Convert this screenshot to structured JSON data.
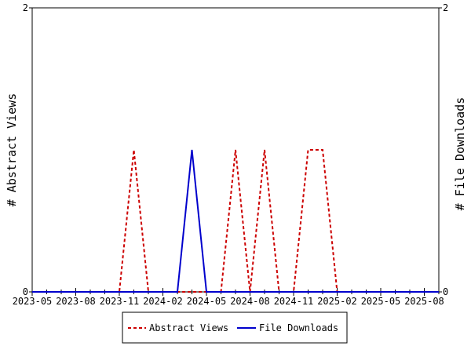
{
  "chart_data": {
    "type": "line",
    "x_ticks": [
      "2023-05",
      "2023-08",
      "2023-11",
      "2024-02",
      "2024-05",
      "2024-08",
      "2024-11",
      "2025-02",
      "2025-05",
      "2025-08"
    ],
    "x_range": [
      "2023-05",
      "2025-09"
    ],
    "ylabel_left": "# Abstract Views",
    "ylabel_right": "# File Downloads",
    "ylim_left": [
      0,
      2
    ],
    "ylim_right": [
      0,
      2
    ],
    "y_ticks_left": [
      "0",
      "2"
    ],
    "y_ticks_right": [
      "0",
      "2"
    ],
    "grid": false,
    "legend_position": "bottom",
    "series": [
      {
        "name": "Abstract Views",
        "axis": "left",
        "color": "#cc0000",
        "dash": "dashed",
        "x": [
          "2023-05",
          "2023-06",
          "2023-07",
          "2023-08",
          "2023-09",
          "2023-10",
          "2023-11",
          "2023-12",
          "2024-01",
          "2024-02",
          "2024-03",
          "2024-04",
          "2024-05",
          "2024-06",
          "2024-07",
          "2024-08",
          "2024-09",
          "2024-10",
          "2024-11",
          "2024-12",
          "2025-01",
          "2025-02",
          "2025-03",
          "2025-04",
          "2025-05",
          "2025-06",
          "2025-07",
          "2025-08",
          "2025-09"
        ],
        "values": [
          0,
          0,
          0,
          0,
          0,
          0,
          0,
          1,
          0,
          0,
          0,
          0,
          0,
          0,
          1,
          0,
          1,
          0,
          0,
          1,
          1,
          0,
          0,
          0,
          0,
          0,
          0,
          0,
          0
        ]
      },
      {
        "name": "File Downloads",
        "axis": "right",
        "color": "#0000cc",
        "dash": "solid",
        "x": [
          "2023-05",
          "2023-06",
          "2023-07",
          "2023-08",
          "2023-09",
          "2023-10",
          "2023-11",
          "2023-12",
          "2024-01",
          "2024-02",
          "2024-03",
          "2024-04",
          "2024-05",
          "2024-06",
          "2024-07",
          "2024-08",
          "2024-09",
          "2024-10",
          "2024-11",
          "2024-12",
          "2025-01",
          "2025-02",
          "2025-03",
          "2025-04",
          "2025-05",
          "2025-06",
          "2025-07",
          "2025-08",
          "2025-09"
        ],
        "values": [
          0,
          0,
          0,
          0,
          0,
          0,
          0,
          0,
          0,
          0,
          0,
          1,
          0,
          0,
          0,
          0,
          0,
          0,
          0,
          0,
          0,
          0,
          0,
          0,
          0,
          0,
          0,
          0,
          0
        ]
      }
    ]
  }
}
